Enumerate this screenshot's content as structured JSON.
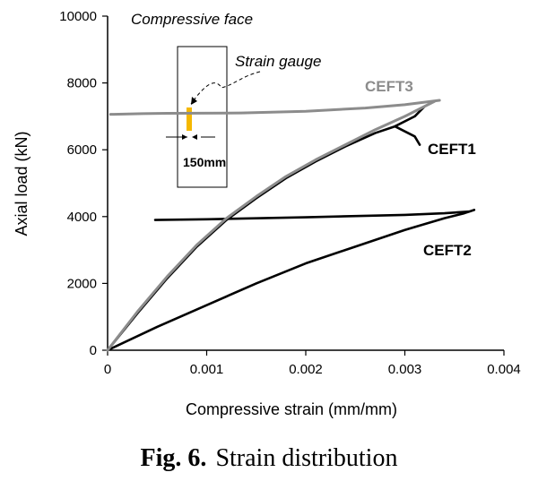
{
  "chart_data": {
    "type": "line",
    "xlabel": "Compressive strain (mm/mm)",
    "ylabel": "Axial load (kN)",
    "xlim": [
      0,
      0.004
    ],
    "ylim": [
      0,
      10000
    ],
    "x_ticks": [
      "0",
      "0.001",
      "0.002",
      "0.003",
      "0.004"
    ],
    "y_ticks": [
      "0",
      "2000",
      "4000",
      "6000",
      "8000",
      "10000"
    ],
    "grid": false,
    "series": [
      {
        "name": "CEFT1",
        "color": "#000000",
        "points": [
          [
            0,
            0
          ],
          [
            0.0003,
            1100
          ],
          [
            0.0006,
            2150
          ],
          [
            0.0009,
            3100
          ],
          [
            0.0012,
            3900
          ],
          [
            0.0015,
            4550
          ],
          [
            0.0018,
            5150
          ],
          [
            0.0021,
            5650
          ],
          [
            0.0024,
            6100
          ],
          [
            0.0027,
            6500
          ],
          [
            0.0029,
            6700
          ],
          [
            0.0031,
            7000
          ],
          [
            0.0032,
            7300
          ]
        ],
        "drop": [
          [
            0.0029,
            6700
          ],
          [
            0.003,
            6550
          ],
          [
            0.0031,
            6400
          ],
          [
            0.00315,
            6150
          ]
        ]
      },
      {
        "name": "CEFT2",
        "color": "#000000",
        "points": [
          [
            0,
            0
          ],
          [
            0.0005,
            700
          ],
          [
            0.001,
            1350
          ],
          [
            0.0015,
            2000
          ],
          [
            0.002,
            2600
          ],
          [
            0.0025,
            3100
          ],
          [
            0.003,
            3600
          ],
          [
            0.0034,
            3950
          ],
          [
            0.0036,
            4100
          ],
          [
            0.0037,
            4200
          ]
        ],
        "plateau": [
          [
            0.00048,
            3900
          ],
          [
            0.001,
            3920
          ],
          [
            0.002,
            3980
          ],
          [
            0.003,
            4050
          ],
          [
            0.0034,
            4100
          ],
          [
            0.00365,
            4150
          ]
        ]
      },
      {
        "name": "CEFT3",
        "color": "#8c8c8c",
        "points": [
          [
            0,
            0
          ],
          [
            0.0003,
            1150
          ],
          [
            0.0006,
            2200
          ],
          [
            0.0009,
            3150
          ],
          [
            0.0012,
            3950
          ],
          [
            0.0015,
            4600
          ],
          [
            0.0018,
            5200
          ],
          [
            0.0021,
            5700
          ],
          [
            0.0024,
            6150
          ],
          [
            0.0027,
            6600
          ],
          [
            0.003,
            7000
          ],
          [
            0.0033,
            7450
          ]
        ],
        "plateau": [
          [
            3e-05,
            7060
          ],
          [
            0.00035,
            7080
          ],
          [
            0.0006,
            7090
          ],
          [
            0.00135,
            7100
          ],
          [
            0.002,
            7150
          ],
          [
            0.0026,
            7250
          ],
          [
            0.003,
            7350
          ],
          [
            0.00335,
            7480
          ]
        ]
      }
    ],
    "annotations": {
      "inset_title": "Compressive face",
      "gauge_label": "Strain gauge",
      "dimension": "150mm"
    }
  },
  "caption": {
    "prefix": "Fig. 6.",
    "text": "Strain distribution"
  }
}
